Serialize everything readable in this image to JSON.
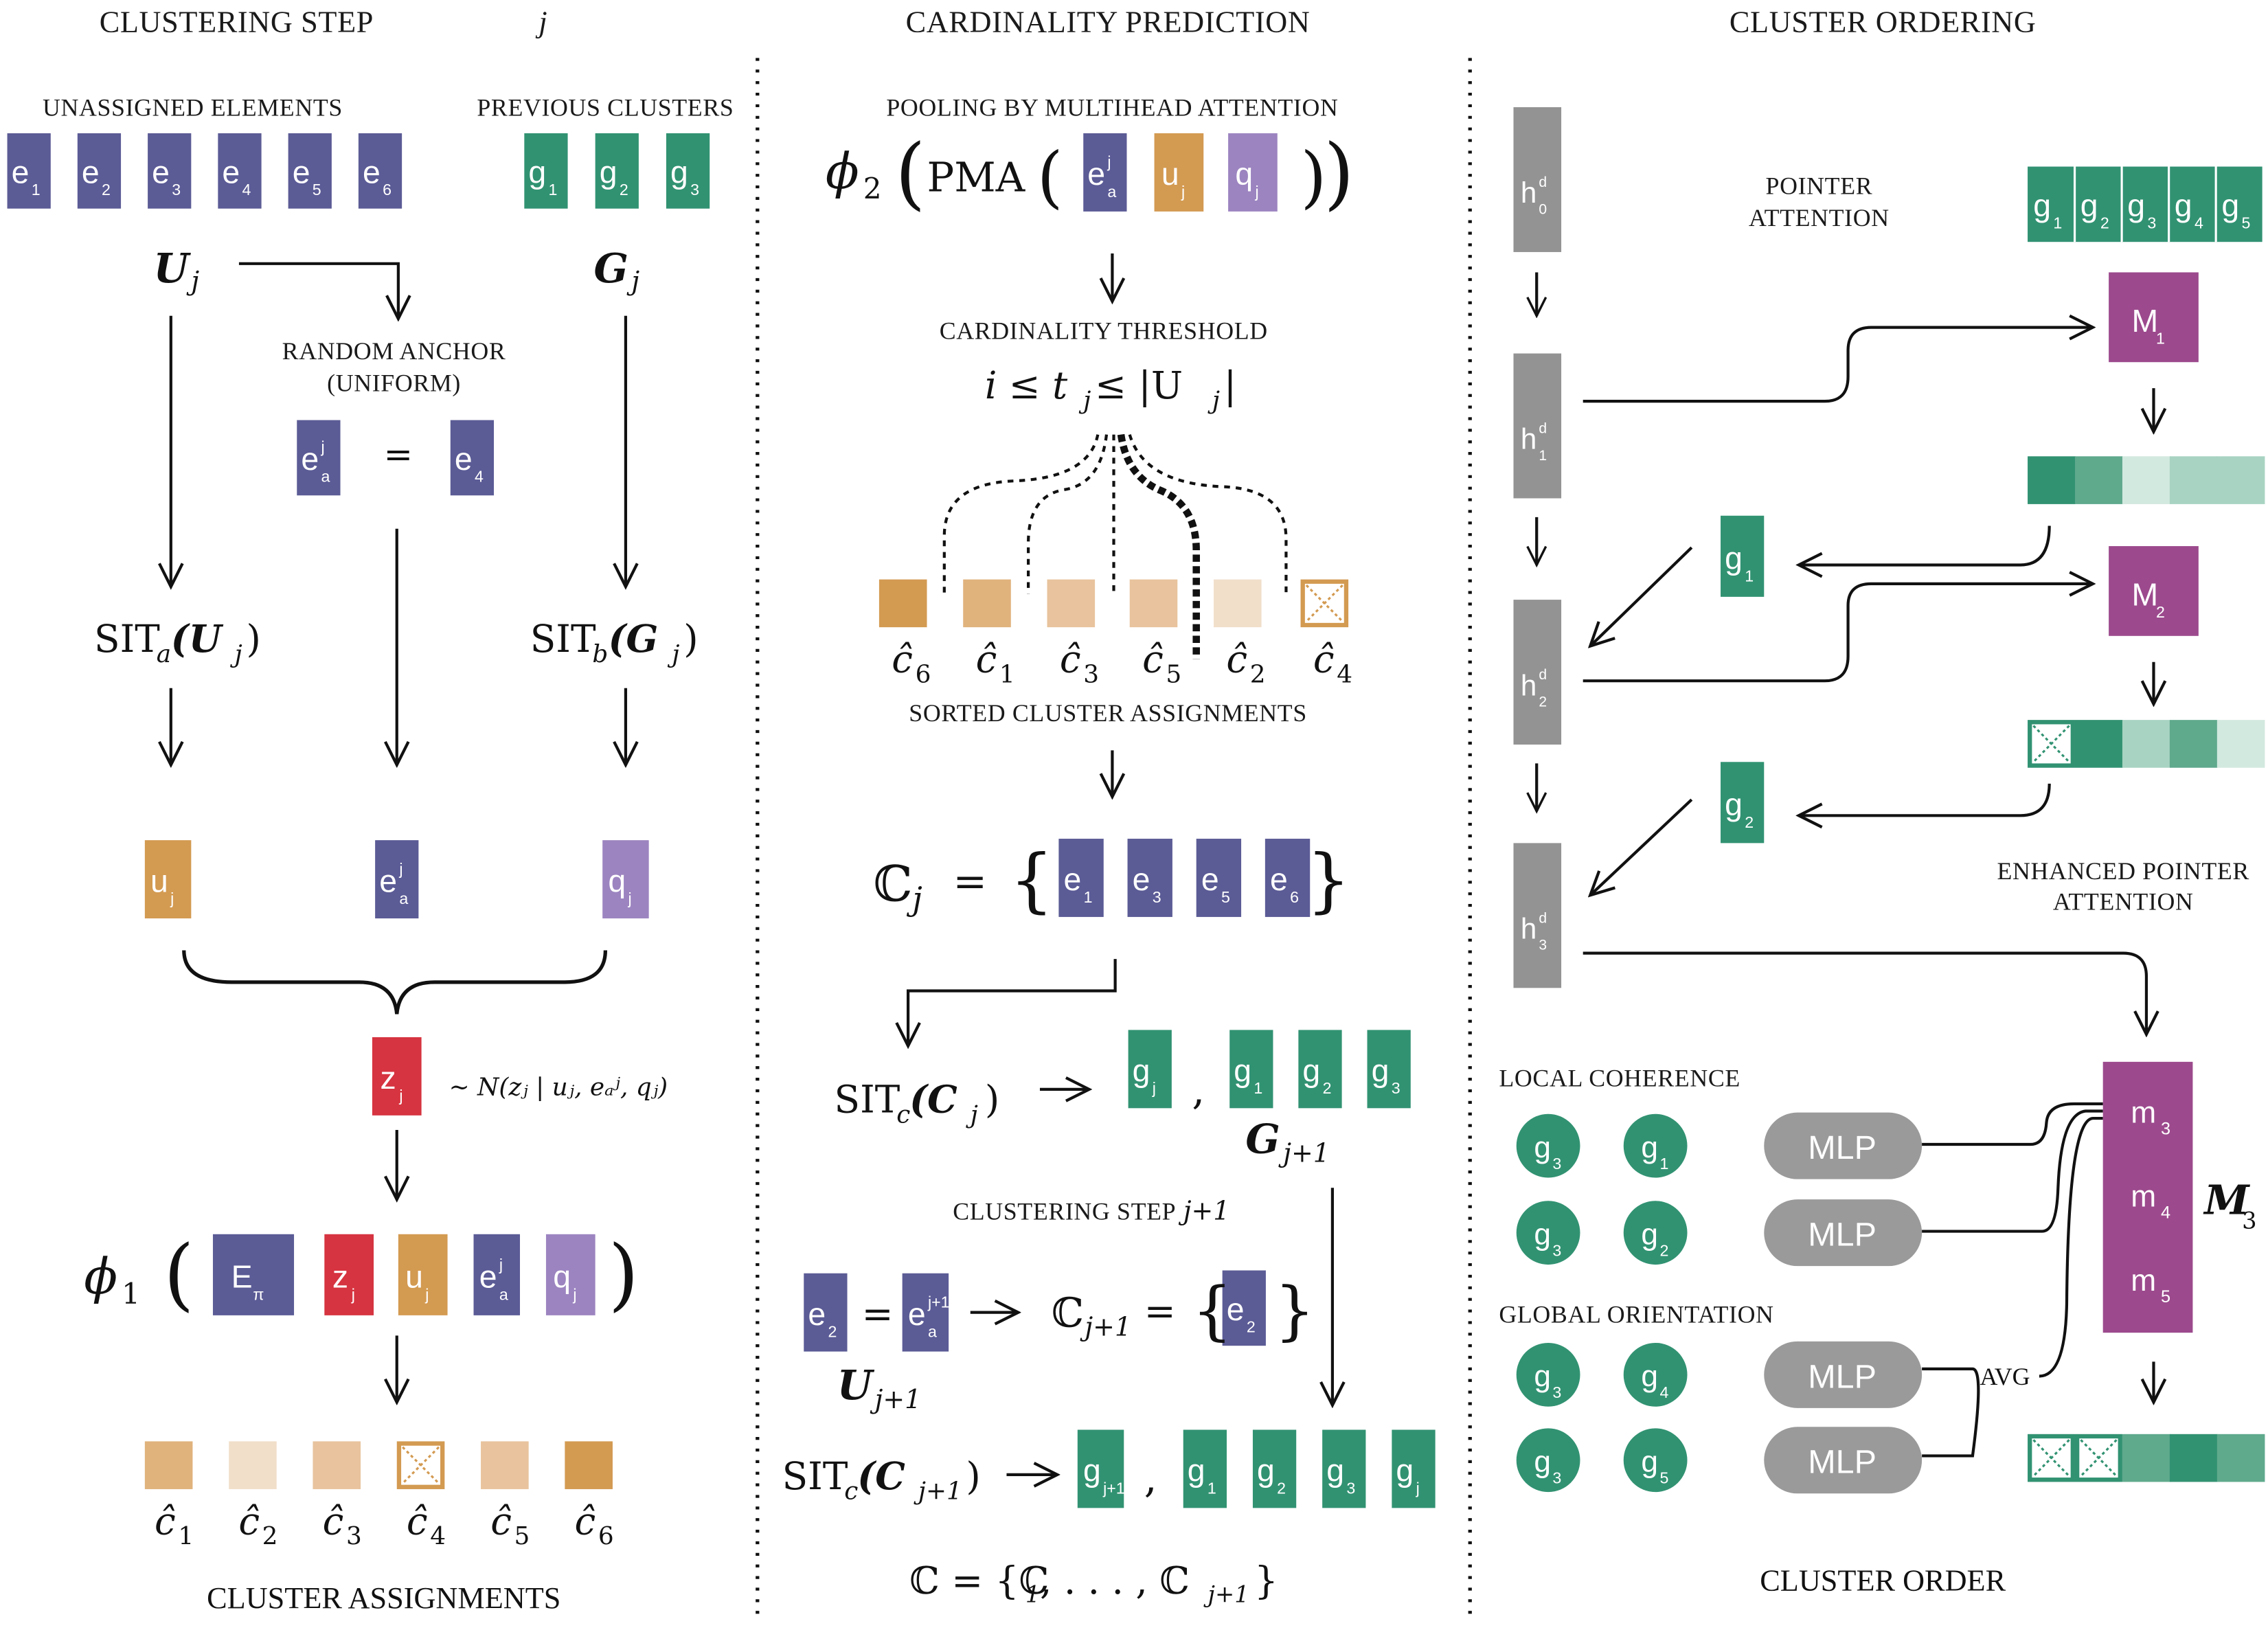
{
  "colors": {
    "element": "#5b5b96",
    "cluster": "#319272",
    "cluster_light": "#5fa98d",
    "cluster_pale": "#a8d3c2",
    "cluster_paler": "#d2e9df",
    "u": "#d39a51",
    "q": "#9c84c0",
    "z": "#d63440",
    "hidden": "#939393",
    "memory": "#9c4a8d",
    "mlp": "#9a9a9a",
    "anchor_dark": "#d39a51",
    "anchor_mid": "#e0b27c",
    "anchor_light": "#e8c39d",
    "anchor_pale": "#f1dfca"
  },
  "headers": {
    "left": "CLUSTERING STEP",
    "left_var": "j",
    "middle": "CARDINALITY PREDICTION",
    "right": "CLUSTER ORDERING"
  },
  "left": {
    "unassigned_label": "UNASSIGNED ELEMENTS",
    "previous_label": "PREVIOUS CLUSTERS",
    "elements": [
      "e",
      "e",
      "e",
      "e",
      "e",
      "e"
    ],
    "element_subs": [
      "1",
      "2",
      "3",
      "4",
      "5",
      "6"
    ],
    "clusters": [
      "g",
      "g",
      "g"
    ],
    "cluster_subs": [
      "1",
      "2",
      "3"
    ],
    "U_label": "U",
    "U_sub": "j",
    "G_label": "G",
    "G_sub": "j",
    "random_anchor_1": "RANDOM ANCHOR",
    "random_anchor_2": "(UNIFORM)",
    "anchor_left": "e",
    "anchor_left_sup": "j",
    "anchor_left_sub": "a",
    "equals": "=",
    "anchor_right": "e",
    "anchor_right_sub": "4",
    "sit_a": "SIT",
    "sit_a_sub": "a",
    "sit_a_arg": "(U",
    "sit_a_arg_sub": "j",
    "sit_a_close": ")",
    "sit_b": "SIT",
    "sit_b_sub": "b",
    "sit_b_arg": "(G",
    "sit_b_arg_sub": "j",
    "sit_b_close": ")",
    "u_box": "u",
    "u_sub": "j",
    "ea_box": "e",
    "ea_sup": "j",
    "ea_sub": "a",
    "q_box": "q",
    "q_sub": "j",
    "z_box": "z",
    "z_sub": "j",
    "z_dist": "~ N(zⱼ | uⱼ, eₐʲ, qⱼ)",
    "phi1": "ϕ",
    "phi1_sub": "1",
    "e_pi": "E",
    "e_pi_sub": "π",
    "assign_labels": [
      "ĉ",
      "ĉ",
      "ĉ",
      "ĉ",
      "ĉ",
      "ĉ"
    ],
    "assign_subs": [
      "1",
      "2",
      "3",
      "4",
      "5",
      "6"
    ],
    "assign_caption": "CLUSTER ASSIGNMENTS"
  },
  "middle": {
    "pma_caption": "POOLING BY MULTIHEAD ATTENTION",
    "phi2": "ϕ",
    "phi2_sub": "2",
    "pma": "PMA",
    "threshold_caption": "CARDINALITY THRESHOLD",
    "threshold_expr": "i ≤ t",
    "threshold_sub": "j",
    "threshold_rest": " ≤ |U",
    "threshold_rest_sub": "j",
    "threshold_close": "|",
    "sorted_labels": [
      "ĉ",
      "ĉ",
      "ĉ",
      "ĉ",
      "ĉ",
      "ĉ"
    ],
    "sorted_subs": [
      "6",
      "1",
      "3",
      "5",
      "2",
      "4"
    ],
    "sorted_caption": "SORTED CLUSTER ASSIGNMENTS",
    "cj_label": "ℂ",
    "cj_sub": "j",
    "cj_eq": "=",
    "cj_elements": [
      "e",
      "e",
      "e",
      "e"
    ],
    "cj_subs": [
      "1",
      "3",
      "5",
      "6"
    ],
    "sit_c": "SIT",
    "sit_c_sub": "c",
    "sit_c_arg": "(C",
    "sit_c_arg_sub": "j",
    "sit_c_close": ")",
    "gj_box": "g",
    "gj_sub": "j",
    "comma": ",",
    "next_g": [
      "g",
      "g",
      "g"
    ],
    "next_g_subs": [
      "1",
      "2",
      "3"
    ],
    "G_next": "G",
    "G_next_sub": "j+1",
    "step_caption": "CLUSTERING STEP",
    "step_var": "j+1",
    "e2_box": "e",
    "e2_sub": "2",
    "ea1_box": "e",
    "ea1_sup": "j+1",
    "ea1_sub": "a",
    "c_next": "ℂ",
    "c_next_sub": "j+1",
    "c_next_elem": "e",
    "c_next_elem_sub": "2",
    "U_next": "U",
    "U_next_sub": "j+1",
    "sit_c2": "SIT",
    "sit_c2_sub": "c",
    "sit_c2_arg": "(C",
    "sit_c2_arg_sub": "j+1",
    "sit_c2_close": ")",
    "gj1_box": "g",
    "gj1_sub": "j+1",
    "final_g": [
      "g",
      "g",
      "g",
      "g"
    ],
    "final_g_subs": [
      "1",
      "2",
      "3",
      "j"
    ],
    "final_expr": "ℂ = {ℂ",
    "final_sub1": "1",
    "final_mid": ", . . . , ℂ",
    "final_sub2": "j+1",
    "final_close": "}"
  },
  "right": {
    "h_label": "h",
    "h_sup": "d",
    "h_subs": [
      "0",
      "1",
      "2",
      "3"
    ],
    "pointer_1": "POINTER",
    "pointer_2": "ATTENTION",
    "top_g": [
      "g",
      "g",
      "g",
      "g",
      "g"
    ],
    "top_g_subs": [
      "1",
      "2",
      "3",
      "4",
      "5"
    ],
    "m1": "M",
    "m1_sub": "1",
    "m2": "M",
    "m2_sub": "2",
    "g1_box": "g",
    "g1_sub": "1",
    "g2_box": "g",
    "g2_sub": "2",
    "enhanced_1": "ENHANCED POINTER",
    "enhanced_2": "ATTENTION",
    "local_caption": "LOCAL COHERENCE",
    "global_caption": "GLOBAL ORIENTATION",
    "local_pairs": [
      [
        "g",
        "3",
        "g",
        "1"
      ],
      [
        "g",
        "3",
        "g",
        "2"
      ]
    ],
    "global_pairs": [
      [
        "g",
        "3",
        "g",
        "4"
      ],
      [
        "g",
        "3",
        "g",
        "5"
      ]
    ],
    "mlp": [
      "MLP",
      "MLP",
      "MLP",
      "MLP"
    ],
    "avg": "AVG",
    "m_labels": [
      "m",
      "m",
      "m"
    ],
    "m_subs": [
      "3",
      "4",
      "5"
    ],
    "M3": "M",
    "M3_sub": "3",
    "order_caption": "CLUSTER ORDER"
  }
}
